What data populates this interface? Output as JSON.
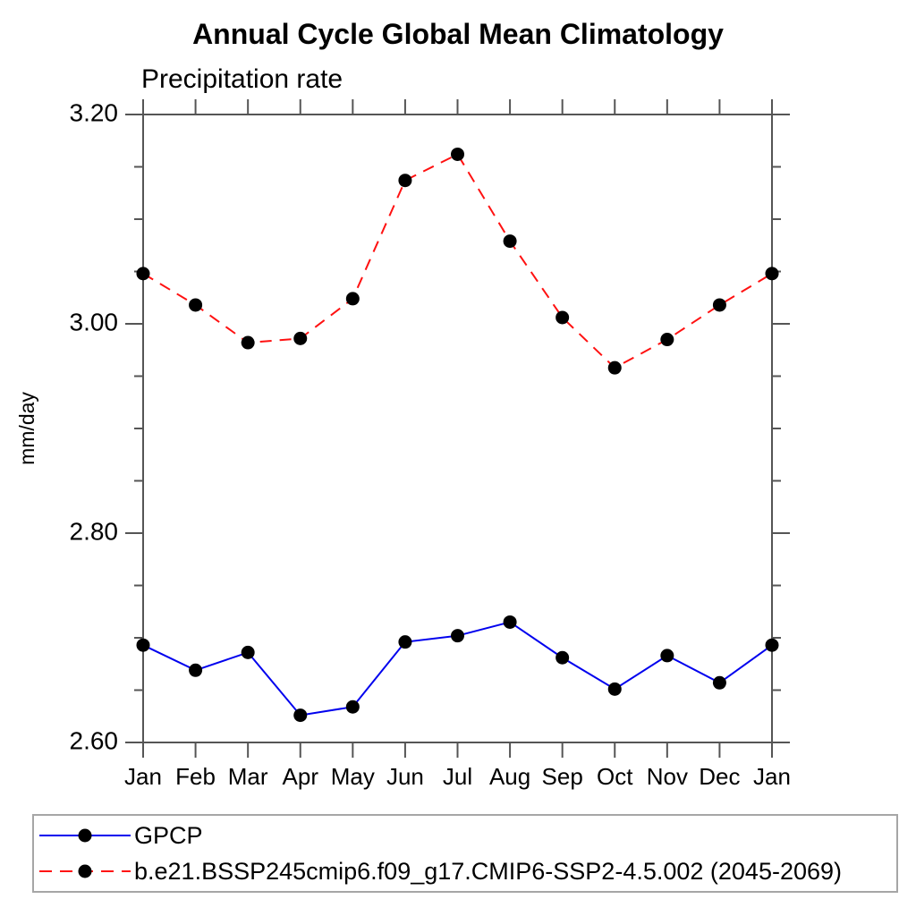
{
  "title": "Annual Cycle Global Mean Climatology",
  "subtitle": "Precipitation rate",
  "ylabel": "mm/day",
  "colors": {
    "axis": "#555555",
    "marker": "#000000",
    "gpcp_line": "#0000ee",
    "model_line": "#ff1111",
    "legend_border": "#a6a6a6",
    "background": "#ffffff"
  },
  "chart_data": {
    "type": "line",
    "title": "Annual Cycle Global Mean Climatology",
    "subtitle": "Precipitation rate",
    "xlabel": "",
    "ylabel": "mm/day",
    "categories": [
      "Jan",
      "Feb",
      "Mar",
      "Apr",
      "May",
      "Jun",
      "Jul",
      "Aug",
      "Sep",
      "Oct",
      "Nov",
      "Dec",
      "Jan"
    ],
    "series": [
      {
        "name": "GPCP",
        "color": "#0000ee",
        "style": "solid",
        "marker": "filled-circle",
        "values": [
          2.693,
          2.669,
          2.686,
          2.626,
          2.634,
          2.696,
          2.702,
          2.715,
          2.681,
          2.651,
          2.683,
          2.657,
          2.693
        ]
      },
      {
        "name": "b.e21.BSSP245cmip6.f09_g17.CMIP6-SSP2-4.5.002 (2045-2069)",
        "color": "#ff1111",
        "style": "dashed",
        "marker": "filled-circle",
        "values": [
          3.048,
          3.018,
          2.982,
          2.986,
          3.024,
          3.137,
          3.162,
          3.079,
          3.006,
          2.958,
          2.985,
          3.018,
          3.048
        ]
      }
    ],
    "ylim": [
      2.6,
      3.2
    ],
    "yticks_major": [
      2.6,
      2.8,
      3.0,
      3.2
    ],
    "ytick_labels": [
      "2.60",
      "2.80",
      "3.00",
      "3.20"
    ],
    "yminor_step": 0.05,
    "grid": false,
    "legend_position": "bottom"
  }
}
